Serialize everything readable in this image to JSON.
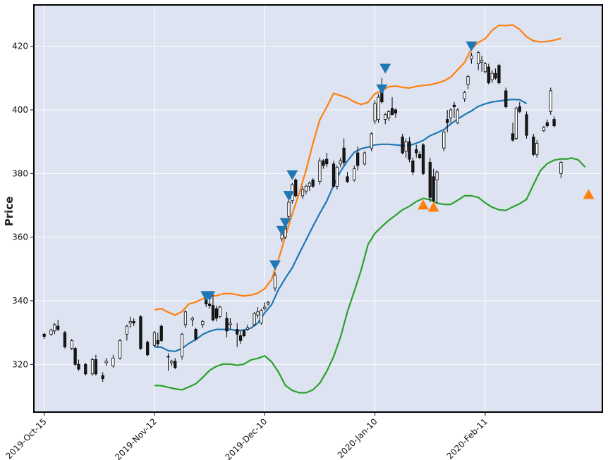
{
  "chart_data": {
    "type": "candlestick",
    "ylabel": "Price",
    "ylim": [
      305,
      433
    ],
    "xlim": [
      -3,
      162
    ],
    "grid": true,
    "background": "#dde3f0",
    "colors": {
      "up_fill": "#ffffff",
      "down_fill": "#1a1a1a",
      "edge": "#000000",
      "upper_band": "#ff7f0e",
      "middle_band": "#1f77b4",
      "lower_band": "#2ca02c",
      "sell_marker": "#1f77b4",
      "buy_marker": "#ff7f0e"
    },
    "y_ticks": [
      320,
      340,
      360,
      380,
      400,
      420
    ],
    "x_ticks": [
      {
        "x": 0,
        "label": "2019-Oct-15"
      },
      {
        "x": 32,
        "label": "2019-Nov-12"
      },
      {
        "x": 64,
        "label": "2019-Dec-10"
      },
      {
        "x": 96,
        "label": "2020-Jan-10"
      },
      {
        "x": 128,
        "label": "2020-Feb-11"
      }
    ],
    "candles": [
      [
        0,
        329.5,
        330.0,
        328.0,
        328.8
      ],
      [
        2,
        329.5,
        331.2,
        329.0,
        330.8
      ],
      [
        3,
        330.5,
        333.0,
        329.5,
        332.5
      ],
      [
        4,
        332.0,
        334.0,
        330.5,
        331.0
      ],
      [
        6,
        330.0,
        330.5,
        325.0,
        325.5
      ],
      [
        8,
        325.0,
        328.0,
        324.5,
        327.5
      ],
      [
        9,
        325.0,
        325.5,
        319.5,
        320.0
      ],
      [
        10,
        320.0,
        321.5,
        318.0,
        318.5
      ],
      [
        12,
        320.0,
        320.5,
        316.5,
        317.0
      ],
      [
        14,
        317.0,
        322.0,
        316.5,
        321.5
      ],
      [
        15,
        321.5,
        323.0,
        316.5,
        317.0
      ],
      [
        17,
        316.5,
        317.5,
        314.5,
        315.5
      ],
      [
        18,
        320.5,
        322.0,
        319.5,
        321.0
      ],
      [
        20,
        319.5,
        323.0,
        319.0,
        322.0
      ],
      [
        22,
        322.0,
        328.0,
        321.5,
        327.5
      ],
      [
        24,
        329.5,
        332.5,
        327.5,
        332.0
      ],
      [
        25,
        333.0,
        335.0,
        331.5,
        333.5
      ],
      [
        26,
        333.5,
        334.5,
        332.0,
        333.0
      ],
      [
        28,
        335.0,
        335.5,
        324.5,
        325.0
      ],
      [
        30,
        327.0,
        327.5,
        322.5,
        323.0
      ],
      [
        32,
        326.0,
        330.5,
        325.5,
        330.0
      ],
      [
        33,
        327.5,
        330.0,
        325.5,
        326.5
      ],
      [
        34,
        332.0,
        332.5,
        327.0,
        327.5
      ],
      [
        36,
        322.5,
        323.5,
        318.0,
        322.5
      ],
      [
        37,
        320.5,
        321.5,
        319.5,
        321.0
      ],
      [
        38,
        321.0,
        322.0,
        318.5,
        319.0
      ],
      [
        40,
        322.5,
        330.0,
        321.5,
        329.5
      ],
      [
        41,
        332.5,
        337.0,
        331.5,
        336.5
      ],
      [
        43,
        334.0,
        335.0,
        332.0,
        334.5
      ],
      [
        44,
        331.0,
        331.5,
        327.5,
        328.0
      ],
      [
        46,
        332.5,
        334.0,
        331.5,
        333.5
      ],
      [
        47,
        341.0,
        341.5,
        338.0,
        339.0
      ],
      [
        48,
        339.0,
        340.5,
        337.5,
        338.5
      ],
      [
        49,
        338.5,
        342.0,
        333.5,
        334.0
      ],
      [
        50,
        337.5,
        338.5,
        333.5,
        334.5
      ],
      [
        51,
        335.0,
        338.5,
        334.5,
        338.0
      ],
      [
        53,
        334.5,
        336.5,
        328.5,
        330.5
      ],
      [
        54,
        332.5,
        334.5,
        331.0,
        333.0
      ],
      [
        56,
        331.0,
        333.0,
        325.5,
        329.5
      ],
      [
        57,
        329.0,
        330.5,
        326.5,
        327.5
      ],
      [
        58,
        330.5,
        331.0,
        328.5,
        329.0
      ],
      [
        59,
        331.0,
        332.5,
        330.5,
        331.5
      ],
      [
        61,
        332.5,
        336.5,
        332.0,
        336.0
      ],
      [
        62,
        335.5,
        338.0,
        334.5,
        336.5
      ],
      [
        63,
        333.0,
        337.5,
        332.5,
        337.0
      ],
      [
        64,
        337.5,
        339.5,
        337.0,
        338.0
      ],
      [
        65,
        339.0,
        340.0,
        338.5,
        339.5
      ],
      [
        67,
        344.0,
        349.0,
        343.0,
        348.0
      ],
      [
        69,
        359.5,
        362.0,
        358.5,
        361.0
      ],
      [
        70,
        360.0,
        364.0,
        359.5,
        363.0
      ],
      [
        71,
        366.5,
        372.0,
        366.0,
        371.0
      ],
      [
        72,
        371.5,
        377.0,
        370.5,
        376.5
      ],
      [
        73,
        378.0,
        378.5,
        372.5,
        373.0
      ],
      [
        75,
        373.0,
        376.0,
        372.0,
        375.0
      ],
      [
        76,
        374.5,
        376.5,
        373.5,
        376.0
      ],
      [
        77,
        376.0,
        377.5,
        374.5,
        377.0
      ],
      [
        78,
        378.0,
        378.5,
        375.5,
        376.0
      ],
      [
        80,
        377.5,
        385.0,
        376.5,
        384.0
      ],
      [
        81,
        384.0,
        384.5,
        381.5,
        382.5
      ],
      [
        82,
        384.5,
        386.5,
        382.0,
        383.0
      ],
      [
        84,
        383.0,
        384.0,
        375.5,
        376.0
      ],
      [
        85,
        376.0,
        382.5,
        375.0,
        382.0
      ],
      [
        86,
        383.0,
        385.0,
        382.0,
        384.0
      ],
      [
        87,
        388.0,
        391.0,
        382.5,
        383.5
      ],
      [
        88,
        379.0,
        380.5,
        377.0,
        377.5
      ],
      [
        90,
        378.0,
        382.5,
        377.5,
        381.5
      ],
      [
        91,
        386.5,
        388.5,
        381.0,
        382.5
      ],
      [
        93,
        383.0,
        387.0,
        382.5,
        386.5
      ],
      [
        95,
        388.0,
        393.0,
        387.0,
        392.5
      ],
      [
        96,
        396.5,
        403.0,
        395.5,
        402.0
      ],
      [
        97,
        397.0,
        405.0,
        396.0,
        404.0
      ],
      [
        98,
        406.5,
        410.0,
        402.0,
        402.5
      ],
      [
        99,
        397.0,
        399.0,
        395.5,
        398.5
      ],
      [
        100,
        397.5,
        400.0,
        396.5,
        399.5
      ],
      [
        101,
        400.5,
        404.0,
        398.5,
        398.5
      ],
      [
        102,
        400.0,
        400.5,
        397.5,
        399.0
      ],
      [
        104,
        391.5,
        392.5,
        386.0,
        386.5
      ],
      [
        105,
        387.0,
        391.0,
        385.0,
        390.0
      ],
      [
        106,
        390.0,
        391.5,
        383.5,
        384.5
      ],
      [
        107,
        384.0,
        385.0,
        379.5,
        380.5
      ],
      [
        108,
        387.5,
        389.0,
        385.0,
        386.5
      ],
      [
        109,
        386.0,
        387.0,
        384.5,
        385.0
      ],
      [
        110,
        389.0,
        389.5,
        379.5,
        380.0
      ],
      [
        112,
        383.5,
        385.0,
        371.0,
        372.5
      ],
      [
        113,
        379.0,
        381.5,
        370.5,
        371.5
      ],
      [
        114,
        378.0,
        381.0,
        370.5,
        380.5
      ],
      [
        116,
        388.0,
        393.5,
        387.0,
        393.0
      ],
      [
        117,
        397.0,
        400.0,
        393.0,
        396.0
      ],
      [
        118,
        397.5,
        400.5,
        396.0,
        400.0
      ],
      [
        119,
        401.5,
        402.5,
        397.5,
        401.0
      ],
      [
        120,
        396.0,
        400.5,
        395.5,
        400.0
      ],
      [
        122,
        403.5,
        406.0,
        402.5,
        405.5
      ],
      [
        123,
        408.0,
        411.0,
        406.5,
        410.5
      ],
      [
        124,
        416.0,
        418.0,
        414.5,
        417.0
      ],
      [
        126,
        414.5,
        418.5,
        412.5,
        418.0
      ],
      [
        127,
        415.0,
        417.0,
        412.0,
        415.5
      ],
      [
        128,
        412.0,
        415.0,
        411.5,
        414.5
      ],
      [
        129,
        413.5,
        414.5,
        408.0,
        408.5
      ],
      [
        130,
        409.5,
        412.5,
        408.5,
        411.5
      ],
      [
        131,
        411.5,
        413.0,
        409.5,
        410.0
      ],
      [
        132,
        414.0,
        414.5,
        408.0,
        408.5
      ],
      [
        134,
        406.0,
        407.0,
        400.5,
        401.0
      ],
      [
        136,
        392.5,
        396.0,
        390.0,
        390.5
      ],
      [
        137,
        391.0,
        401.0,
        390.5,
        400.5
      ],
      [
        138,
        401.0,
        402.5,
        399.0,
        399.5
      ],
      [
        140,
        398.5,
        399.5,
        391.0,
        392.0
      ],
      [
        142,
        391.5,
        392.5,
        385.5,
        386.0
      ],
      [
        143,
        386.0,
        390.5,
        385.0,
        389.5
      ],
      [
        145,
        393.5,
        395.0,
        393.0,
        394.5
      ],
      [
        146,
        396.0,
        397.0,
        394.5,
        395.0
      ],
      [
        147,
        399.5,
        407.0,
        398.5,
        406.0
      ],
      [
        148,
        397.0,
        398.0,
        394.5,
        395.0
      ],
      [
        150,
        380.0,
        384.0,
        378.5,
        383.5
      ]
    ],
    "upper_band": [
      [
        32,
        337.2
      ],
      [
        34,
        337.5
      ],
      [
        36,
        336.4
      ],
      [
        38,
        335.5
      ],
      [
        40,
        336.6
      ],
      [
        42,
        339.0
      ],
      [
        44,
        339.6
      ],
      [
        46,
        340.6
      ],
      [
        48,
        341.5
      ],
      [
        50,
        341.6
      ],
      [
        52,
        342.2
      ],
      [
        54,
        342.3
      ],
      [
        56,
        341.9
      ],
      [
        58,
        341.5
      ],
      [
        60,
        341.8
      ],
      [
        62,
        342.4
      ],
      [
        64,
        343.8
      ],
      [
        66,
        346.7
      ],
      [
        68,
        353.0
      ],
      [
        70,
        360.2
      ],
      [
        72,
        367.3
      ],
      [
        74,
        373.8
      ],
      [
        76,
        381.0
      ],
      [
        78,
        389.5
      ],
      [
        80,
        396.9
      ],
      [
        82,
        400.9
      ],
      [
        84,
        405.2
      ],
      [
        86,
        404.5
      ],
      [
        88,
        403.8
      ],
      [
        90,
        402.5
      ],
      [
        92,
        401.7
      ],
      [
        94,
        402.4
      ],
      [
        96,
        405.1
      ],
      [
        98,
        406.0
      ],
      [
        100,
        407.3
      ],
      [
        102,
        407.5
      ],
      [
        104,
        407.1
      ],
      [
        106,
        406.9
      ],
      [
        108,
        407.4
      ],
      [
        110,
        407.7
      ],
      [
        112,
        407.9
      ],
      [
        114,
        408.4
      ],
      [
        116,
        409.1
      ],
      [
        118,
        410.3
      ],
      [
        120,
        412.6
      ],
      [
        122,
        414.9
      ],
      [
        124,
        419.2
      ],
      [
        126,
        421.2
      ],
      [
        128,
        422.4
      ],
      [
        130,
        425.0
      ],
      [
        132,
        426.6
      ],
      [
        134,
        426.5
      ],
      [
        136,
        426.7
      ],
      [
        138,
        425.3
      ],
      [
        140,
        423.0
      ],
      [
        142,
        421.7
      ],
      [
        144,
        421.4
      ],
      [
        146,
        421.5
      ],
      [
        148,
        421.9
      ],
      [
        150,
        422.5
      ]
    ],
    "middle_band": [
      [
        32,
        325.5
      ],
      [
        34,
        325.4
      ],
      [
        36,
        324.3
      ],
      [
        38,
        324.1
      ],
      [
        40,
        325.0
      ],
      [
        42,
        326.6
      ],
      [
        44,
        327.8
      ],
      [
        46,
        329.4
      ],
      [
        48,
        330.4
      ],
      [
        50,
        331.0
      ],
      [
        52,
        331.0
      ],
      [
        54,
        331.0
      ],
      [
        56,
        330.6
      ],
      [
        58,
        330.8
      ],
      [
        60,
        331.4
      ],
      [
        62,
        333.0
      ],
      [
        64,
        336.2
      ],
      [
        66,
        338.8
      ],
      [
        68,
        343.5
      ],
      [
        70,
        347.1
      ],
      [
        72,
        350.4
      ],
      [
        74,
        354.8
      ],
      [
        76,
        359.1
      ],
      [
        78,
        363.4
      ],
      [
        80,
        367.5
      ],
      [
        82,
        371.3
      ],
      [
        84,
        376.3
      ],
      [
        86,
        380.7
      ],
      [
        88,
        383.9
      ],
      [
        90,
        386.7
      ],
      [
        92,
        387.8
      ],
      [
        94,
        388.3
      ],
      [
        96,
        389.0
      ],
      [
        98,
        389.2
      ],
      [
        100,
        389.2
      ],
      [
        102,
        389.0
      ],
      [
        104,
        388.8
      ],
      [
        106,
        388.8
      ],
      [
        108,
        389.5
      ],
      [
        110,
        390.4
      ],
      [
        112,
        391.9
      ],
      [
        114,
        392.8
      ],
      [
        116,
        393.8
      ],
      [
        118,
        395.6
      ],
      [
        120,
        397.1
      ],
      [
        122,
        398.5
      ],
      [
        124,
        399.7
      ],
      [
        126,
        401.1
      ],
      [
        128,
        401.9
      ],
      [
        130,
        402.5
      ],
      [
        132,
        402.8
      ],
      [
        134,
        403.1
      ],
      [
        136,
        403.3
      ],
      [
        138,
        403.2
      ],
      [
        140,
        402.0
      ]
    ],
    "lower_band": [
      [
        32,
        313.4
      ],
      [
        34,
        313.3
      ],
      [
        36,
        312.8
      ],
      [
        38,
        312.3
      ],
      [
        40,
        312.0
      ],
      [
        42,
        312.9
      ],
      [
        44,
        313.9
      ],
      [
        46,
        315.9
      ],
      [
        48,
        318.1
      ],
      [
        50,
        319.4
      ],
      [
        52,
        320.1
      ],
      [
        54,
        320.1
      ],
      [
        56,
        319.7
      ],
      [
        58,
        320.1
      ],
      [
        60,
        321.4
      ],
      [
        62,
        321.9
      ],
      [
        64,
        322.7
      ],
      [
        66,
        320.8
      ],
      [
        68,
        317.6
      ],
      [
        70,
        313.4
      ],
      [
        72,
        311.8
      ],
      [
        74,
        311.1
      ],
      [
        76,
        311.1
      ],
      [
        78,
        312.0
      ],
      [
        80,
        314.1
      ],
      [
        82,
        317.8
      ],
      [
        84,
        322.4
      ],
      [
        86,
        328.6
      ],
      [
        88,
        336.5
      ],
      [
        90,
        343.0
      ],
      [
        92,
        349.7
      ],
      [
        94,
        357.7
      ],
      [
        96,
        361.2
      ],
      [
        98,
        363.3
      ],
      [
        100,
        365.3
      ],
      [
        102,
        366.9
      ],
      [
        104,
        368.6
      ],
      [
        106,
        369.7
      ],
      [
        108,
        371.2
      ],
      [
        110,
        372.2
      ],
      [
        112,
        371.8
      ],
      [
        114,
        370.7
      ],
      [
        116,
        370.3
      ],
      [
        118,
        370.3
      ],
      [
        120,
        371.6
      ],
      [
        122,
        373.0
      ],
      [
        124,
        373.0
      ],
      [
        126,
        372.5
      ],
      [
        128,
        370.8
      ],
      [
        130,
        369.4
      ],
      [
        132,
        368.6
      ],
      [
        134,
        368.4
      ],
      [
        136,
        369.5
      ],
      [
        138,
        370.5
      ],
      [
        140,
        371.9
      ],
      [
        142,
        376.5
      ],
      [
        144,
        380.9
      ],
      [
        146,
        383.1
      ],
      [
        148,
        384.2
      ],
      [
        150,
        384.6
      ],
      [
        152,
        384.6
      ],
      [
        153,
        384.9
      ],
      [
        155,
        384.3
      ],
      [
        157,
        382.0
      ]
    ],
    "sell_markers": [
      [
        47,
        341.5
      ],
      [
        48,
        341.5
      ],
      [
        67,
        351.2
      ],
      [
        69,
        362.0
      ],
      [
        70,
        364.5
      ],
      [
        71,
        373.0
      ],
      [
        72,
        379.5
      ],
      [
        98,
        406.5
      ],
      [
        99,
        413.0
      ],
      [
        124,
        420.0
      ]
    ],
    "buy_markers": [
      [
        110,
        370.2
      ],
      [
        113,
        369.5
      ],
      [
        158,
        373.5
      ]
    ]
  }
}
